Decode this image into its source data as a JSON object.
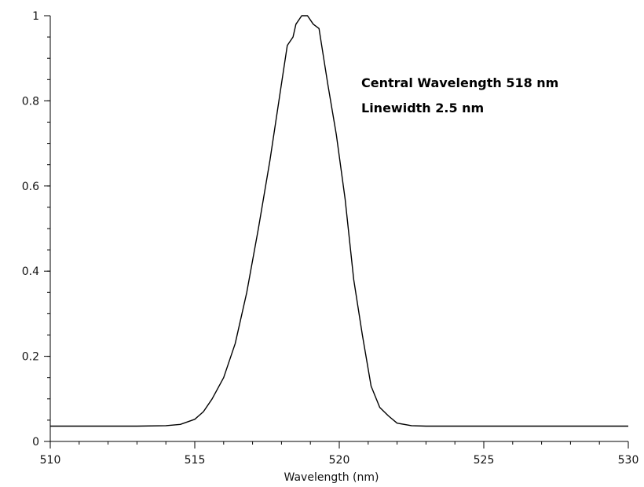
{
  "chart_data": {
    "type": "line",
    "title": "",
    "xlabel": "Wavelength (nm)",
    "ylabel": "",
    "xlim": [
      510,
      530
    ],
    "ylim": [
      0,
      1
    ],
    "x_ticks": [
      510,
      515,
      520,
      525,
      530
    ],
    "x_tick_labels": [
      "510",
      "515",
      "520",
      "525",
      "530"
    ],
    "y_ticks": [
      0,
      0.2,
      0.4,
      0.6,
      0.8,
      1
    ],
    "y_tick_labels": [
      "0",
      "0.2",
      "0.4",
      "0.6",
      "0.8",
      "1"
    ],
    "x_minor_step": 1,
    "y_minor_step": 0.05,
    "grid": false,
    "legend": "none",
    "line_color": "#000000",
    "annotations": [
      "Central Wavelength 518 nm",
      "Linewidth 2.5 nm"
    ],
    "series": [
      {
        "name": "",
        "x": [
          510,
          511,
          512,
          513,
          514,
          514.5,
          515,
          515.3,
          515.6,
          516,
          516.4,
          516.8,
          517.2,
          517.6,
          518,
          518.2,
          518.4,
          518.5,
          518.7,
          518.9,
          519.1,
          519.3,
          519.6,
          519.9,
          520.2,
          520.5,
          520.8,
          521.1,
          521.4,
          521.7,
          522,
          522.5,
          523,
          524,
          525,
          526,
          527,
          528,
          529,
          530
        ],
        "y": [
          0.036,
          0.036,
          0.036,
          0.036,
          0.037,
          0.04,
          0.052,
          0.07,
          0.1,
          0.15,
          0.23,
          0.35,
          0.5,
          0.66,
          0.84,
          0.93,
          0.95,
          0.98,
          1.0,
          1.0,
          0.98,
          0.97,
          0.84,
          0.72,
          0.57,
          0.38,
          0.25,
          0.13,
          0.08,
          0.06,
          0.043,
          0.037,
          0.036,
          0.036,
          0.036,
          0.036,
          0.036,
          0.036,
          0.036,
          0.036
        ]
      }
    ]
  }
}
